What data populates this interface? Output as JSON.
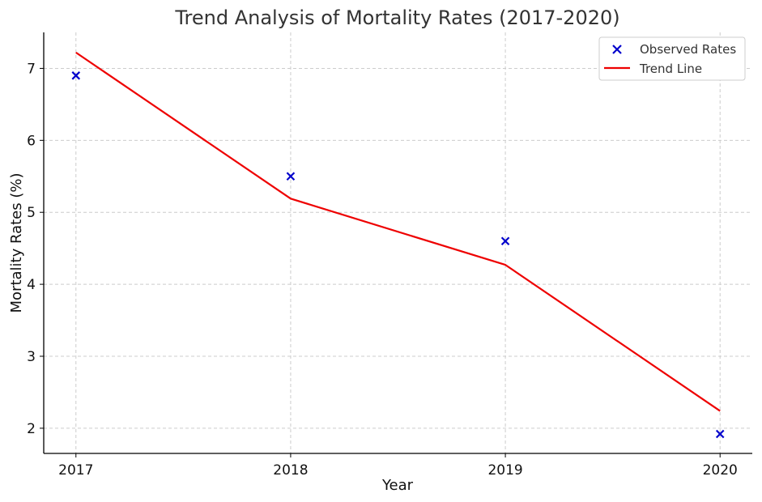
{
  "chart_data": {
    "type": "line",
    "title": "Trend Analysis of Mortality Rates (2017-2020)",
    "xlabel": "Year",
    "ylabel": "Mortality Rates (%)",
    "categories": [
      "2017",
      "2018",
      "2019",
      "2020"
    ],
    "x": [
      2017,
      2018,
      2019,
      2020
    ],
    "xlim": [
      2016.85,
      2020.15
    ],
    "ylim": [
      1.65,
      7.5
    ],
    "yticks": [
      2,
      3,
      4,
      5,
      6,
      7
    ],
    "grid": true,
    "legend_position": "top-right",
    "series": [
      {
        "name": "Observed Rates",
        "kind": "scatter",
        "marker": "x",
        "color": "#0000cc",
        "values": [
          6.9,
          5.5,
          4.6,
          1.92
        ]
      },
      {
        "name": "Trend Line",
        "kind": "line",
        "color": "#ee0000",
        "values": [
          7.22,
          5.19,
          4.27,
          2.24
        ]
      }
    ]
  }
}
